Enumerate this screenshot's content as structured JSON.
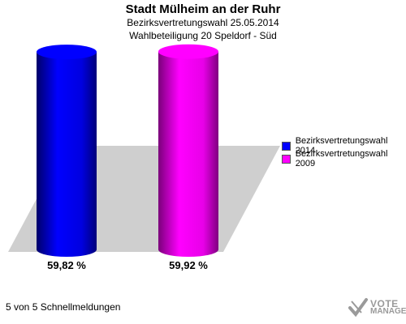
{
  "header": {
    "title": "Stadt Mülheim an der Ruhr",
    "subtitle1": "Bezirksvertretungswahl 25.05.2014",
    "subtitle2": "Wahlbeteiligung 20 Speldorf - Süd"
  },
  "chart_data": {
    "type": "bar",
    "categories": [
      "Bezirksvertretungswahl 2014",
      "Bezirksvertretungswahl 2009"
    ],
    "values": [
      59.82,
      59.92
    ],
    "value_labels": [
      "59,82 %",
      "59,92 %"
    ],
    "colors": [
      "#0000ff",
      "#ff00ff"
    ],
    "ylim": [
      0,
      65
    ],
    "grid": false,
    "legend_position": "right"
  },
  "legend": {
    "items": [
      {
        "label": "Bezirksvertretungswahl 2014",
        "color": "#0000ff"
      },
      {
        "label": "Bezirksvertretungswahl 2009",
        "color": "#ff00ff"
      }
    ]
  },
  "footer": {
    "status": "5 von 5 Schnellmeldungen"
  },
  "logo": {
    "line1": "VOTE",
    "line2": "MANAGER"
  }
}
